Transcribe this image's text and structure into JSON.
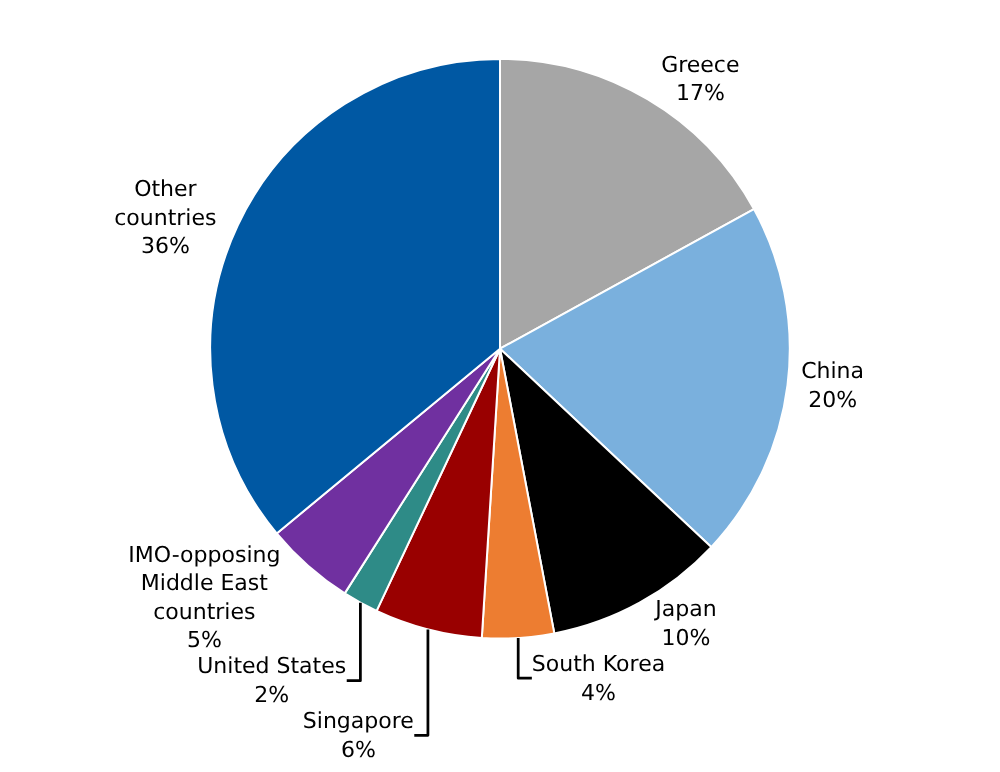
{
  "chart_data": {
    "type": "pie",
    "categories": [
      "Greece",
      "China",
      "Japan",
      "South Korea",
      "Singapore",
      "United States",
      "IMO-opposing Middle East countries",
      "Other countries"
    ],
    "values": [
      17,
      20,
      10,
      4,
      6,
      2,
      5,
      36
    ],
    "value_labels": [
      "17%",
      "20%",
      "10%",
      "4%",
      "6%",
      "2%",
      "5%",
      "36%"
    ],
    "colors": [
      "#a6a6a6",
      "#7ab0dd",
      "#000000",
      "#ed7d31",
      "#990000",
      "#2e8b87",
      "#7030a0",
      "#0058a3"
    ],
    "legend": false
  }
}
